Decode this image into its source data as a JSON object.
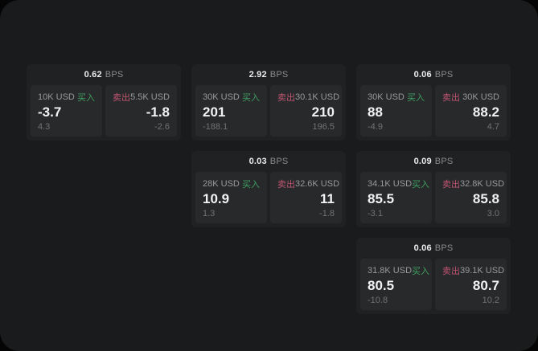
{
  "labels": {
    "bps": "BPS",
    "buy": "买入",
    "sell": "卖出"
  },
  "colors": {
    "buy_green": "#3f9f62",
    "sell_red": "#c05571",
    "surface": "#1a1b1c",
    "card": "#202123",
    "panel": "#28292b"
  },
  "cards": [
    {
      "bps": "0.62",
      "buy": {
        "amount": "10K USD",
        "value": "-3.7",
        "delta": "4.3"
      },
      "sell": {
        "amount": "5.5K USD",
        "value": "-1.8",
        "delta": "-2.6"
      }
    },
    {
      "bps": "2.92",
      "buy": {
        "amount": "30K USD",
        "value": "201",
        "delta": "-188.1"
      },
      "sell": {
        "amount": "30.1K USD",
        "value": "210",
        "delta": "196.5"
      }
    },
    {
      "bps": "0.06",
      "buy": {
        "amount": "30K USD",
        "value": "88",
        "delta": "-4.9"
      },
      "sell": {
        "amount": "30K USD",
        "value": "88.2",
        "delta": "4.7"
      }
    },
    {
      "bps": "0.03",
      "buy": {
        "amount": "28K USD",
        "value": "10.9",
        "delta": "1.3"
      },
      "sell": {
        "amount": "32.6K USD",
        "value": "11",
        "delta": "-1.8"
      }
    },
    {
      "bps": "0.09",
      "buy": {
        "amount": "34.1K USD",
        "value": "85.5",
        "delta": "-3.1"
      },
      "sell": {
        "amount": "32.8K USD",
        "value": "85.8",
        "delta": "3.0"
      }
    },
    {
      "bps": "0.06",
      "buy": {
        "amount": "31.8K USD",
        "value": "80.5",
        "delta": "-10.8"
      },
      "sell": {
        "amount": "39.1K USD",
        "value": "80.7",
        "delta": "10.2"
      }
    }
  ]
}
